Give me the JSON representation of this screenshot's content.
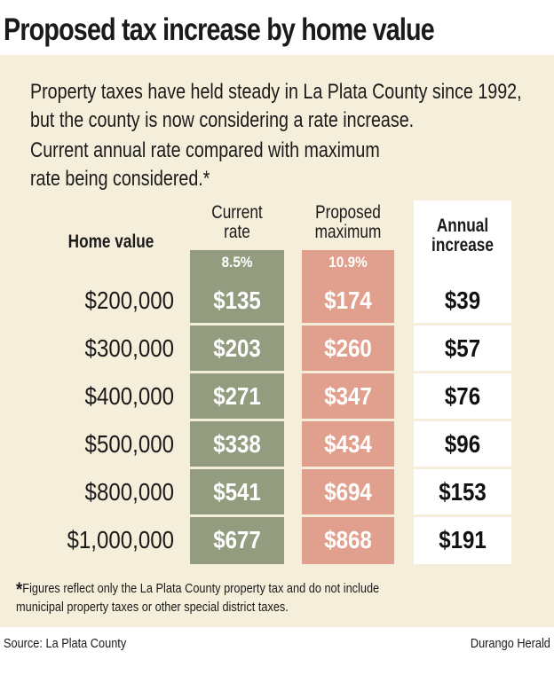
{
  "title": "Proposed tax increase by home value",
  "intro": "Property taxes have held steady in La Plata County since 1992, but the county is now considering a rate increase.",
  "subtitle": [
    "Current annual rate compared with maximum",
    "rate being considered.*"
  ],
  "headers": {
    "home": "Home value",
    "current": [
      "Current",
      "rate"
    ],
    "proposed": [
      "Proposed",
      "maximum"
    ],
    "annual": [
      "Annual",
      "increase"
    ]
  },
  "rates": {
    "current": "8.5%",
    "proposed": "10.9%"
  },
  "colors": {
    "panel": "#f5eeda",
    "current": "#949c80",
    "proposed": "#e1a08e",
    "annual": "#ffffff"
  },
  "chart_data": {
    "type": "table",
    "columns": [
      "Home value",
      "Current rate 8.5%",
      "Proposed maximum 10.9%",
      "Annual increase"
    ],
    "rows": [
      {
        "home": "$200,000",
        "current": "$135",
        "proposed": "$174",
        "annual": "$39"
      },
      {
        "home": "$300,000",
        "current": "$203",
        "proposed": "$260",
        "annual": "$57"
      },
      {
        "home": "$400,000",
        "current": "$271",
        "proposed": "$347",
        "annual": "$76"
      },
      {
        "home": "$500,000",
        "current": "$338",
        "proposed": "$434",
        "annual": "$96"
      },
      {
        "home": "$800,000",
        "current": "$541",
        "proposed": "$694",
        "annual": "$153"
      },
      {
        "home": "$1,000,000",
        "current": "$677",
        "proposed": "$868",
        "annual": "$191"
      }
    ]
  },
  "footnote": {
    "star": "*",
    "lines": [
      "Figures reflect only the La Plata County property tax and do not include",
      "municipal property taxes or other special district taxes."
    ]
  },
  "source": "Source: La Plata County",
  "credit": "Durango Herald"
}
